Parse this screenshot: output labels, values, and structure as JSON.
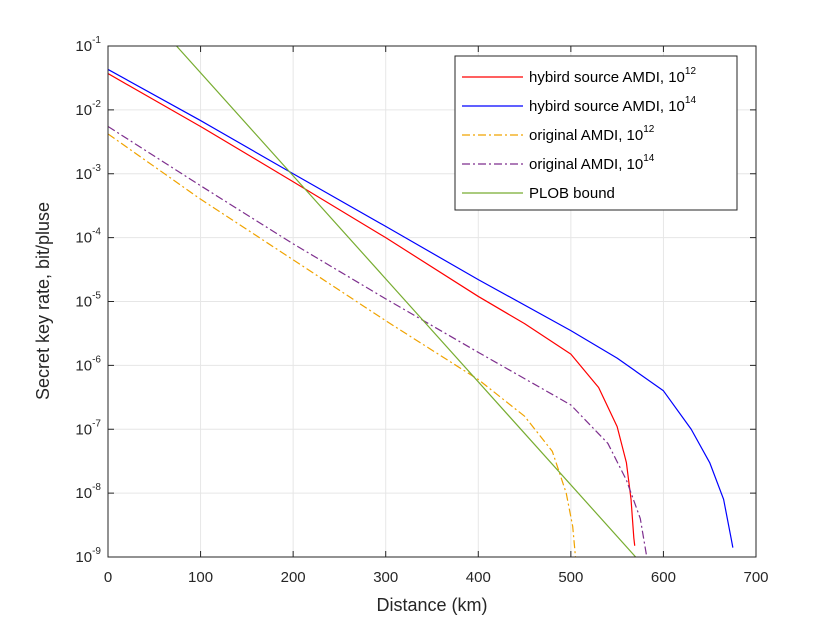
{
  "chart_data": {
    "type": "line",
    "xlabel": "Distance (km)",
    "ylabel": "Secret key rate, bit/pluse",
    "xlim": [
      0,
      700
    ],
    "ylim": [
      1e-09,
      0.1
    ],
    "yscale": "log",
    "grid": true,
    "legend_position": "top-right",
    "x_ticks": [
      "0",
      "100",
      "200",
      "300",
      "400",
      "500",
      "600",
      "700"
    ],
    "y_ticks": [
      {
        "base": "10",
        "exp": "-9"
      },
      {
        "base": "10",
        "exp": "-8"
      },
      {
        "base": "10",
        "exp": "-7"
      },
      {
        "base": "10",
        "exp": "-6"
      },
      {
        "base": "10",
        "exp": "-5"
      },
      {
        "base": "10",
        "exp": "-4"
      },
      {
        "base": "10",
        "exp": "-3"
      },
      {
        "base": "10",
        "exp": "-2"
      },
      {
        "base": "10",
        "exp": "-1"
      }
    ],
    "series": [
      {
        "name": "hybird source AMDI, 10",
        "name_sup": "12",
        "color": "#ff0000",
        "dash": "solid",
        "points": [
          [
            0,
            0.037
          ],
          [
            100,
            0.0055
          ],
          [
            200,
            0.00075
          ],
          [
            300,
            0.0001
          ],
          [
            400,
            1.2e-05
          ],
          [
            450,
            4.5e-06
          ],
          [
            500,
            1.5e-06
          ],
          [
            530,
            4.5e-07
          ],
          [
            550,
            1.1e-07
          ],
          [
            560,
            3e-08
          ],
          [
            565,
            8e-09
          ],
          [
            568,
            2e-09
          ],
          [
            569,
            1.5e-09
          ]
        ]
      },
      {
        "name": "hybird source AMDI, 10",
        "name_sup": "14",
        "color": "#0000ff",
        "dash": "solid",
        "points": [
          [
            0,
            0.043
          ],
          [
            100,
            0.0068
          ],
          [
            200,
            0.001
          ],
          [
            300,
            0.00015
          ],
          [
            400,
            2.2e-05
          ],
          [
            500,
            3.5e-06
          ],
          [
            550,
            1.3e-06
          ],
          [
            600,
            4e-07
          ],
          [
            630,
            1e-07
          ],
          [
            650,
            3e-08
          ],
          [
            665,
            8e-09
          ],
          [
            673,
            2e-09
          ],
          [
            675,
            1.4e-09
          ]
        ]
      },
      {
        "name": "original AMDI, 10",
        "name_sup": "12",
        "color": "#f0a300",
        "dash": "dashdot",
        "points": [
          [
            0,
            0.0042
          ],
          [
            100,
            0.0004
          ],
          [
            200,
            4.5e-05
          ],
          [
            300,
            5e-06
          ],
          [
            400,
            6e-07
          ],
          [
            450,
            1.6e-07
          ],
          [
            480,
            4.5e-08
          ],
          [
            495,
            1e-08
          ],
          [
            502,
            3e-09
          ],
          [
            505,
            1e-09
          ]
        ]
      },
      {
        "name": "original AMDI, 10",
        "name_sup": "14",
        "color": "#7e2f8e",
        "dash": "dashdot",
        "points": [
          [
            0,
            0.0055
          ],
          [
            100,
            0.00065
          ],
          [
            200,
            8e-05
          ],
          [
            300,
            1.1e-05
          ],
          [
            400,
            1.6e-06
          ],
          [
            500,
            2.4e-07
          ],
          [
            540,
            6e-08
          ],
          [
            560,
            1.6e-08
          ],
          [
            575,
            4e-09
          ],
          [
            582,
            1e-09
          ]
        ]
      },
      {
        "name": "PLOB bound",
        "color": "#77ac30",
        "dash": "solid",
        "points": [
          [
            74,
            0.1
          ],
          [
            570,
            1e-09
          ]
        ]
      }
    ]
  }
}
